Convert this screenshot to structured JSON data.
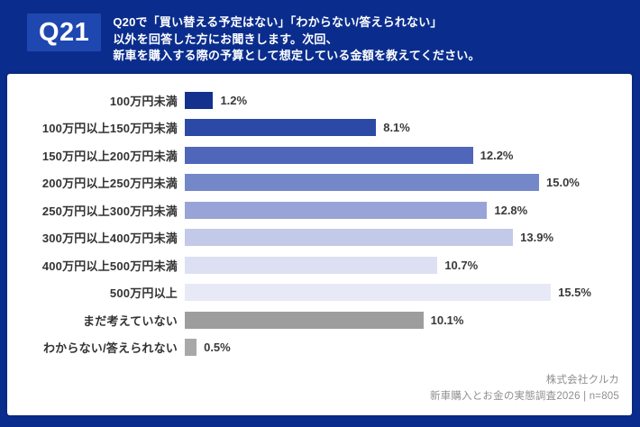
{
  "page": {
    "background_color": "#0a2d8d",
    "card_color": "#ffffff"
  },
  "header": {
    "tag": "Q21",
    "lines": [
      "Q20で「買い替える予定はない」「わからない/答えられない」",
      "以外を回答した方にお聞きします。次回、",
      "新車を購入する際の予算として想定している金額を教えてください。"
    ]
  },
  "chart_data": {
    "type": "bar",
    "orientation": "horizontal",
    "unit": "%",
    "categories": [
      "100万円未満",
      "100万円以上150万円未満",
      "150万円以上200万円未満",
      "200万円以上250万円未満",
      "250万円以上300万円未満",
      "300万円以上400万円未満",
      "400万円以上500万円未満",
      "500万円以上",
      "まだ考えていない",
      "わからない/答えられない"
    ],
    "values": [
      1.2,
      8.1,
      12.2,
      15.0,
      12.8,
      13.9,
      10.7,
      15.5,
      10.1,
      0.5
    ],
    "value_labels": [
      "1.2%",
      "8.1%",
      "12.2%",
      "15.0%",
      "12.8%",
      "13.9%",
      "10.7%",
      "15.5%",
      "10.1%",
      "0.5%"
    ],
    "bar_colors": [
      "#14318e",
      "#2c4aa5",
      "#5066ba",
      "#7487c9",
      "#98a4d7",
      "#c3c9e9",
      "#dde0f2",
      "#e7e9f6",
      "#9d9d9d",
      "#a8a8a8"
    ],
    "xlim": [
      0,
      16
    ],
    "grid": false,
    "legend": false,
    "value_label_position": "end-of-bar"
  },
  "footer": {
    "company": "株式会社クルカ",
    "source": "新車購入とお金の実態調査2026 | n=805"
  }
}
